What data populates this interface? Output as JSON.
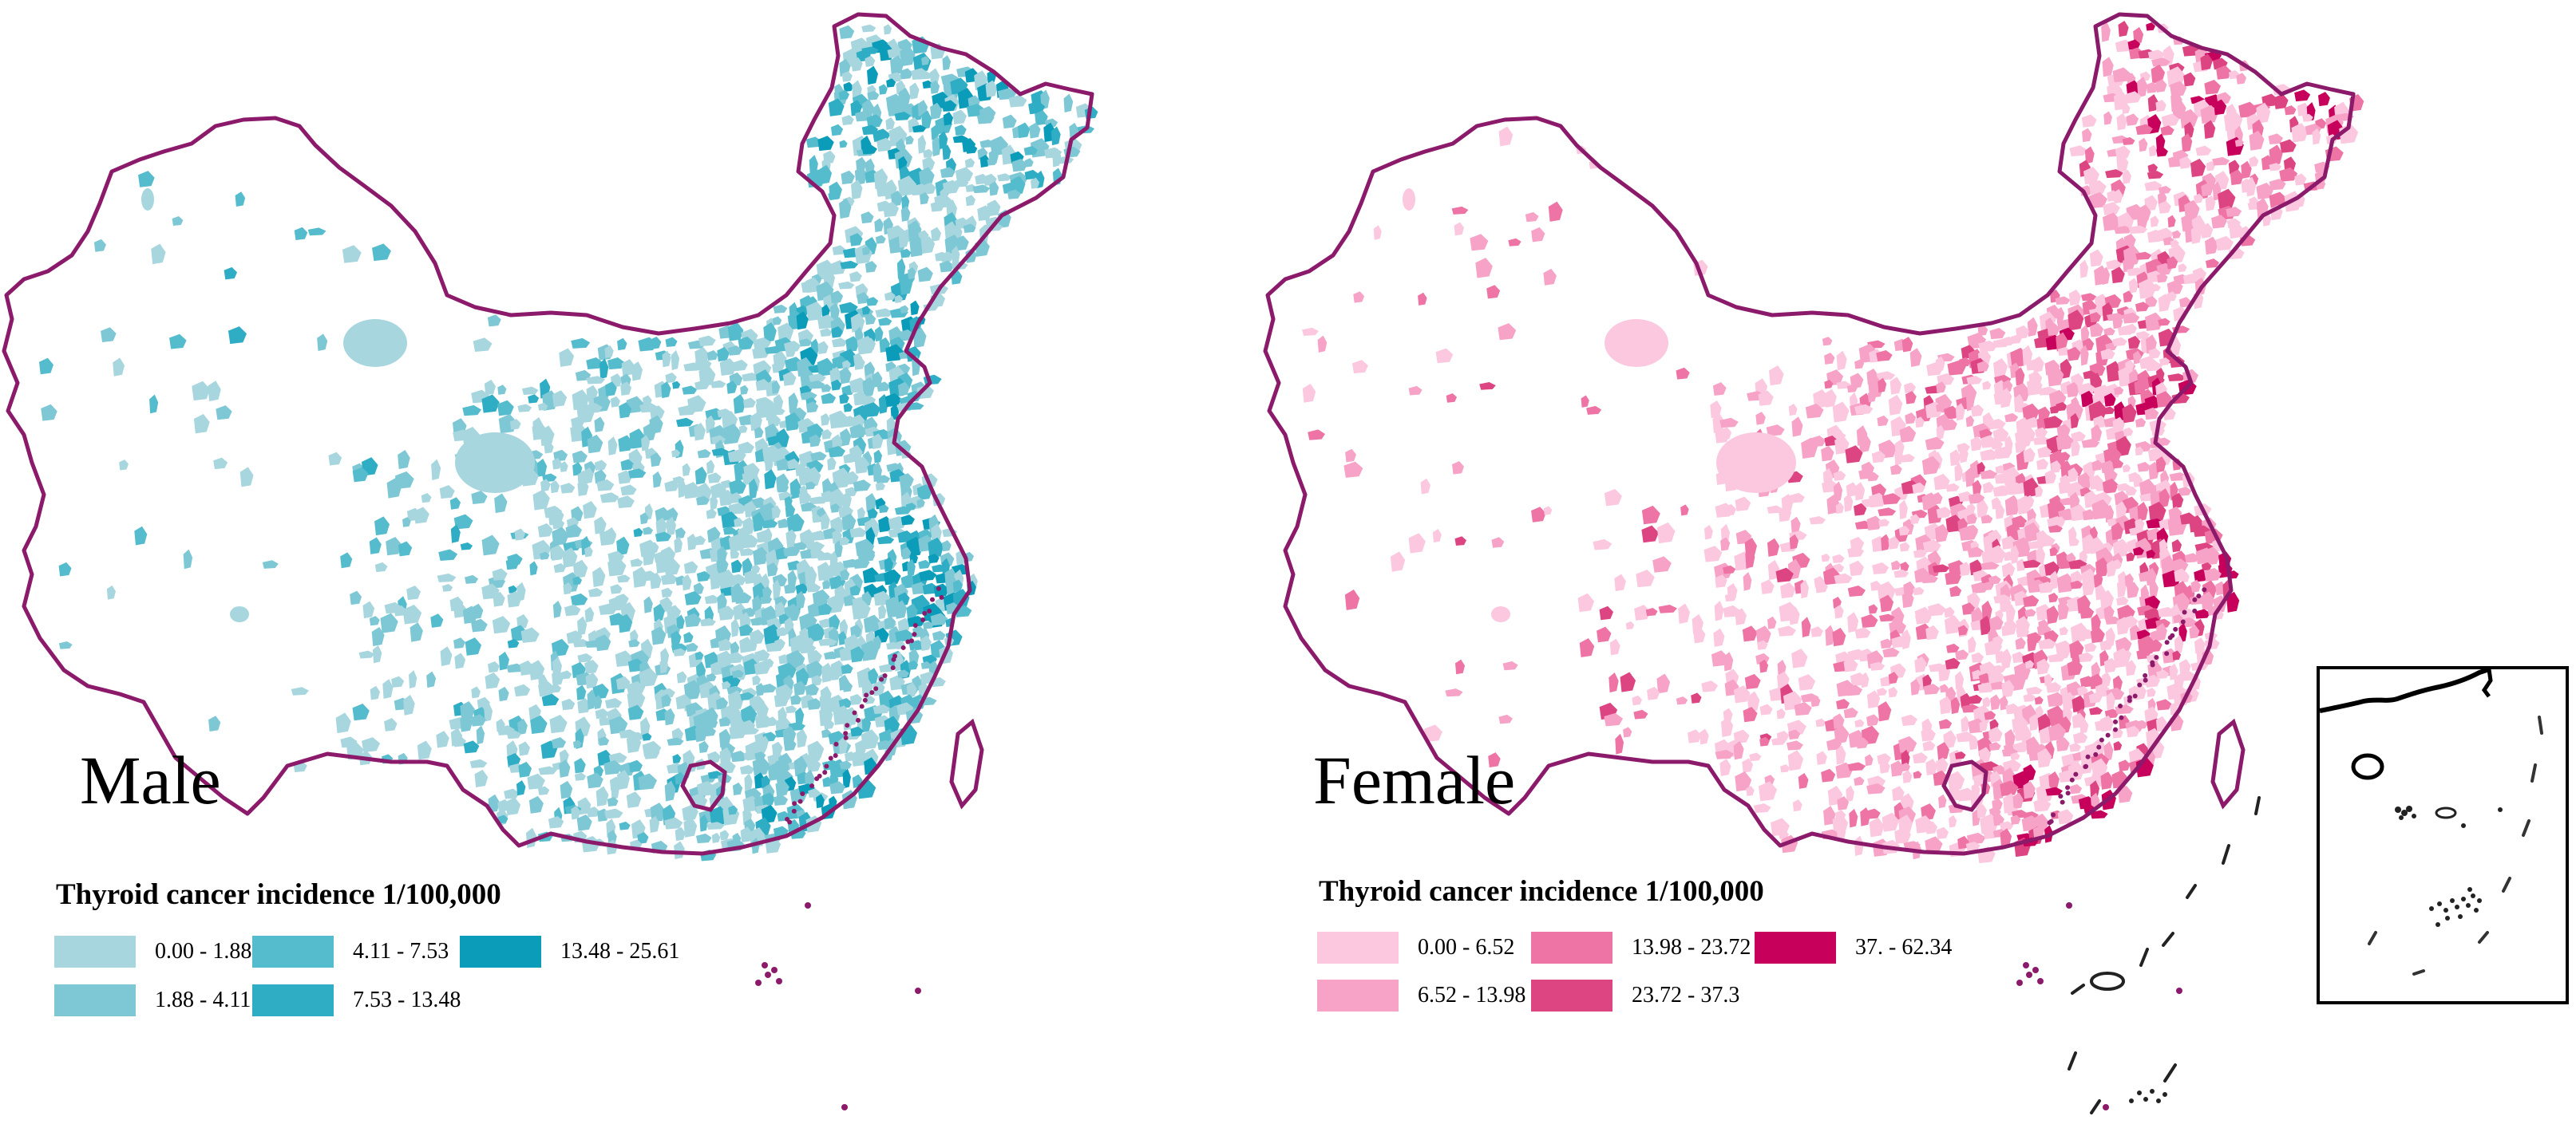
{
  "male": {
    "label": "Male",
    "legend_title": "Thyroid cancer incidence 1/100,000",
    "border_color": "#8b1a6b",
    "classes": [
      {
        "range": "0.00 - 1.88",
        "color": "#a8d6de"
      },
      {
        "range": "1.88 - 4.11",
        "color": "#7ec8d6"
      },
      {
        "range": "4.11 - 7.53",
        "color": "#55bccd"
      },
      {
        "range": "7.53 - 13.48",
        "color": "#2fadc4"
      },
      {
        "range": "13.48 - 25.61",
        "color": "#0a9cb8"
      }
    ]
  },
  "female": {
    "label": "Female",
    "legend_title": "Thyroid cancer incidence 1/100,000",
    "border_color": "#8b1a6b",
    "classes": [
      {
        "range": "0.00 - 6.52",
        "color": "#fcc8e0"
      },
      {
        "range": "6.52 - 13.98",
        "color": "#f7a2c7"
      },
      {
        "range": "13.98 - 23.72",
        "color": "#ee74a5"
      },
      {
        "range": "23.72 - 37.3",
        "color": "#dd4482"
      },
      {
        "range": "37. - 62.34",
        "color": "#c7005c"
      }
    ]
  },
  "inset": {
    "name": "south-china-sea-inset"
  }
}
